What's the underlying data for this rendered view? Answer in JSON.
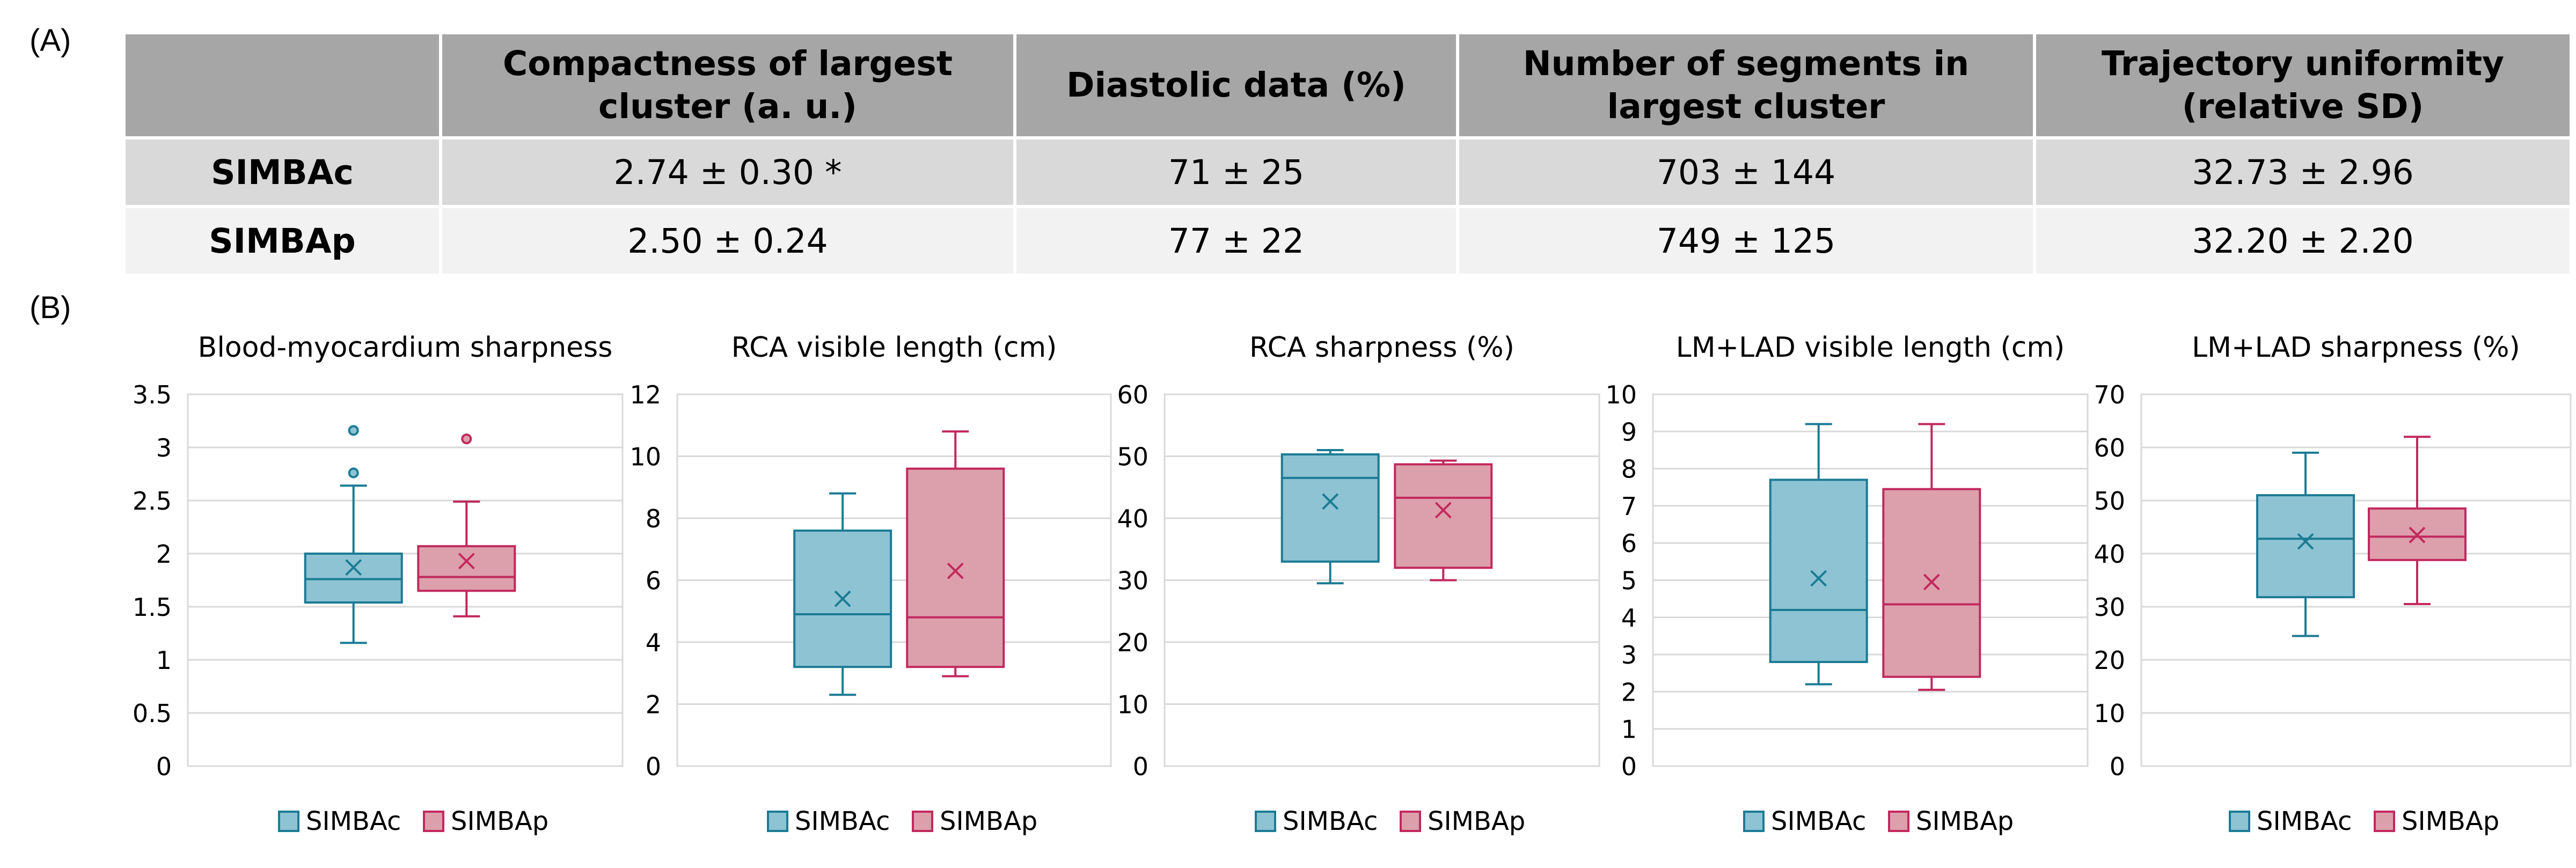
{
  "panel_a_label": "(A)",
  "panel_b_label": "(B)",
  "table": {
    "headers": [
      "",
      "Compactness of largest cluster (a. u.)",
      "Diastolic data (%)",
      "Number of segments in largest cluster",
      "Trajectory uniformity (relative SD)"
    ],
    "rows": [
      {
        "name": "SIMBAc",
        "cells": [
          "2.74 ± 0.30 *",
          "71 ± 25",
          "703 ± 144",
          "32.73 ± 2.96"
        ]
      },
      {
        "name": "SIMBAp",
        "cells": [
          "2.50 ± 0.24",
          "77 ± 22",
          "749 ± 125",
          "32.20 ± 2.20"
        ]
      }
    ]
  },
  "colors": {
    "simbac_fill": "#8ec3d3",
    "simbac_line": "#1b7b94",
    "simbap_fill": "#dca0ac",
    "simbap_line": "#c2285d",
    "grid": "#d9d9d9",
    "header_bg": "#a6a6a6"
  },
  "chart_data": [
    {
      "type": "box",
      "title": "Blood-myocardium sharpness",
      "ylim": [
        0,
        3.5
      ],
      "yticks": [
        "0",
        "0.5",
        "1",
        "1.5",
        "2",
        "2.5",
        "3",
        "3.5"
      ],
      "grid": true,
      "legend_position": "bottom",
      "series": [
        {
          "name": "SIMBAc",
          "min": 1.16,
          "q1": 1.54,
          "median": 1.76,
          "q3": 2.0,
          "max": 2.64,
          "mean": 1.87,
          "outliers": [
            2.76,
            3.16
          ]
        },
        {
          "name": "SIMBAp",
          "min": 1.41,
          "q1": 1.65,
          "median": 1.78,
          "q3": 2.07,
          "max": 2.49,
          "mean": 1.93,
          "outliers": [
            3.08
          ]
        }
      ]
    },
    {
      "type": "box",
      "title": "RCA visible length (cm)",
      "ylim": [
        0,
        12
      ],
      "yticks": [
        "0",
        "2",
        "4",
        "6",
        "8",
        "10",
        "12"
      ],
      "grid": true,
      "legend_position": "bottom",
      "series": [
        {
          "name": "SIMBAc",
          "min": 2.3,
          "q1": 3.2,
          "median": 4.9,
          "q3": 7.6,
          "max": 8.8,
          "mean": 5.4,
          "outliers": []
        },
        {
          "name": "SIMBAp",
          "min": 2.9,
          "q1": 3.2,
          "median": 4.8,
          "q3": 9.6,
          "max": 10.8,
          "mean": 6.3,
          "outliers": []
        }
      ]
    },
    {
      "type": "box",
      "title": "RCA sharpness (%)",
      "ylim": [
        0,
        60
      ],
      "yticks": [
        "0",
        "10",
        "20",
        "30",
        "40",
        "50",
        "60"
      ],
      "grid": true,
      "legend_position": "bottom",
      "series": [
        {
          "name": "SIMBAc",
          "min": 29.5,
          "q1": 33,
          "median": 46.5,
          "q3": 50.3,
          "max": 51,
          "mean": 42.7,
          "outliers": []
        },
        {
          "name": "SIMBAp",
          "min": 30,
          "q1": 32,
          "median": 43.3,
          "q3": 48.7,
          "max": 49.3,
          "mean": 41.3,
          "outliers": []
        }
      ]
    },
    {
      "type": "box",
      "title": "LM+LAD visible length (cm)",
      "ylim": [
        0,
        10
      ],
      "yticks": [
        "0",
        "1",
        "2",
        "3",
        "4",
        "5",
        "6",
        "7",
        "8",
        "9",
        "10"
      ],
      "grid": true,
      "legend_position": "bottom",
      "series": [
        {
          "name": "SIMBAc",
          "min": 2.2,
          "q1": 2.8,
          "median": 4.2,
          "q3": 7.7,
          "max": 9.2,
          "mean": 5.05,
          "outliers": []
        },
        {
          "name": "SIMBAp",
          "min": 2.05,
          "q1": 2.4,
          "median": 4.35,
          "q3": 7.45,
          "max": 9.2,
          "mean": 4.95,
          "outliers": []
        }
      ]
    },
    {
      "type": "box",
      "title": "LM+LAD sharpness (%)",
      "ylim": [
        0,
        70
      ],
      "yticks": [
        "0",
        "10",
        "20",
        "30",
        "40",
        "50",
        "60",
        "70"
      ],
      "grid": true,
      "legend_position": "bottom",
      "series": [
        {
          "name": "SIMBAc",
          "min": 24.5,
          "q1": 31.8,
          "median": 42.8,
          "q3": 51,
          "max": 59,
          "mean": 42.3,
          "outliers": []
        },
        {
          "name": "SIMBAp",
          "min": 30.5,
          "q1": 38.8,
          "median": 43.2,
          "q3": 48.5,
          "max": 62,
          "mean": 43.5,
          "outliers": []
        }
      ]
    }
  ]
}
